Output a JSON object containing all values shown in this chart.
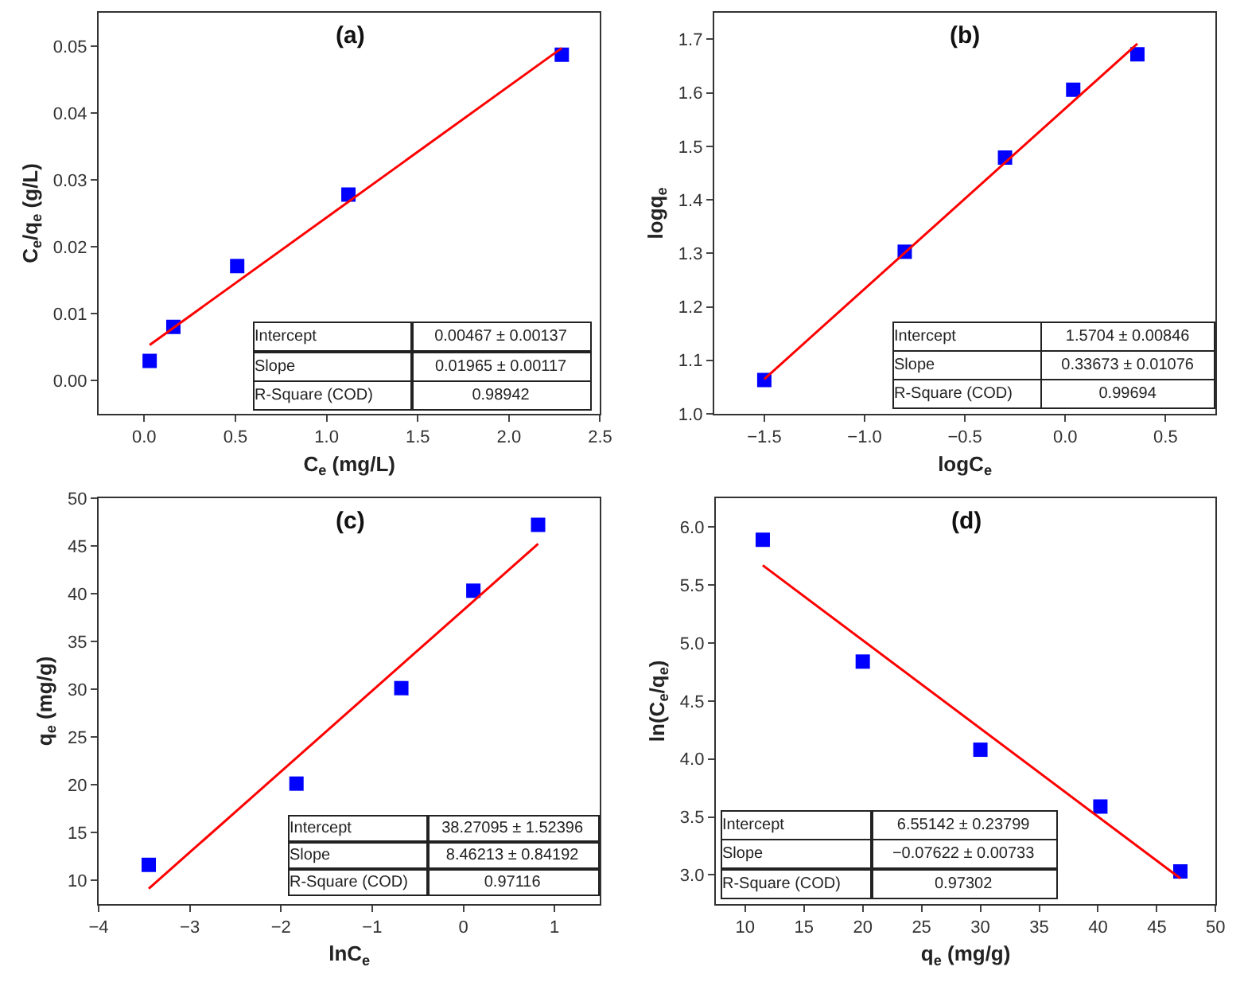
{
  "chart_data": [
    {
      "type": "scatter",
      "title": "(a)",
      "xlabel": "C$_{e}$ (mg/L)",
      "ylabel": "C$_{e}$/q$_{e}$ (g/L)",
      "marker": "square",
      "x": [
        0.03,
        0.16,
        0.51,
        1.12,
        2.29
      ],
      "series": [
        {
          "color": "#0000ff",
          "values": [
            0.0029,
            0.008,
            0.0171,
            0.0278,
            0.0487
          ]
        },
        {
          "type": "line",
          "marker": "none",
          "color": "#ff0000",
          "x": [
            0.03,
            2.29
          ],
          "values": [
            0.0053,
            0.0497
          ]
        }
      ],
      "xlim": [
        -0.25,
        2.5
      ],
      "xticks": [
        {
          "value": 0,
          "label": "0.0"
        },
        0.5,
        {
          "value": 1,
          "label": "1.0"
        },
        1.5,
        {
          "value": 2,
          "label": "2.0"
        },
        2.5
      ],
      "ylim": [
        -0.005,
        0.055
      ],
      "yticks": [
        {
          "value": 0,
          "label": "0.00"
        },
        0.01,
        0.02,
        0.03,
        0.04,
        0.05
      ],
      "annotations": [
        "Intercept",
        "0.00467 ± 0.00137",
        "Slope",
        "0.01965 ± 0.00117",
        "R-Square (COD)",
        "0.98942"
      ]
    },
    {
      "type": "scatter",
      "title": "(b)",
      "xlabel": "logC$_{e}$",
      "ylabel": "logq$_{e}$",
      "marker": "square",
      "x": [
        -1.5,
        -0.8,
        -0.3,
        0.04,
        0.36
      ],
      "series": [
        {
          "color": "#0000ff",
          "values": [
            1.063,
            1.303,
            1.479,
            1.606,
            1.672
          ]
        },
        {
          "type": "line",
          "marker": "none",
          "color": "#ff0000",
          "x": [
            -1.5,
            0.36
          ],
          "values": [
            1.065,
            1.692
          ]
        }
      ],
      "xlim": [
        -1.75,
        0.75
      ],
      "xticks": [
        {
          "value": -1.5,
          "label": "−1.5"
        },
        {
          "value": -1,
          "label": "−1.0"
        },
        {
          "value": -0.5,
          "label": "−0.5"
        },
        {
          "value": 0,
          "label": "0.0"
        },
        0.5
      ],
      "ylim": [
        1.0,
        1.75
      ],
      "yticks": [
        {
          "value": 1,
          "label": "1.0"
        },
        1.1,
        1.2,
        1.3,
        1.4,
        1.5,
        1.6,
        1.7
      ],
      "annotations": [
        "Intercept",
        "1.5704 ± 0.00846",
        "Slope",
        "0.33673 ± 0.01076",
        "R-Square (COD)",
        "0.99694"
      ]
    },
    {
      "type": "scatter",
      "title": "(c)",
      "xlabel": "lnC$_{e}$",
      "ylabel": "q$_{e}$ (mg/g)",
      "marker": "square",
      "x": [
        -3.45,
        -1.83,
        -0.68,
        0.11,
        0.82
      ],
      "series": [
        {
          "color": "#0000ff",
          "values": [
            11.6,
            20.1,
            30.1,
            40.3,
            47.2
          ]
        },
        {
          "type": "line",
          "marker": "none",
          "color": "#ff0000",
          "x": [
            -3.45,
            0.82
          ],
          "values": [
            9.1,
            45.2
          ]
        }
      ],
      "xlim": [
        -4,
        1.5
      ],
      "xticks": [
        {
          "value": -4,
          "label": "−4"
        },
        {
          "value": -3,
          "label": "−3"
        },
        {
          "value": -2,
          "label": "−2"
        },
        {
          "value": -1,
          "label": "−1"
        },
        0,
        1
      ],
      "ylim": [
        7.5,
        50
      ],
      "yticks": [
        10,
        15,
        20,
        25,
        30,
        35,
        40,
        45,
        50
      ],
      "annotations": [
        "Intercept",
        "38.27095 ± 1.52396",
        "Slope",
        "8.46213 ± 0.84192",
        "R-Square (COD)",
        "0.97116"
      ]
    },
    {
      "type": "scatter",
      "title": "(d)",
      "xlabel": "q$_{e}$ (mg/g)",
      "ylabel": "ln(C$_{e}$/q$_{e}$)",
      "marker": "square",
      "x": [
        11.5,
        20.0,
        30.0,
        40.2,
        47.0
      ],
      "series": [
        {
          "color": "#0000ff",
          "values": [
            5.89,
            4.84,
            4.08,
            3.59,
            3.03
          ]
        },
        {
          "type": "line",
          "marker": "none",
          "color": "#ff0000",
          "x": [
            11.5,
            47.0
          ],
          "values": [
            5.67,
            2.97
          ]
        }
      ],
      "xlim": [
        7.5,
        50
      ],
      "xticks": [
        10,
        15,
        20,
        25,
        30,
        35,
        40,
        45,
        50
      ],
      "ylim": [
        2.75,
        6.25
      ],
      "yticks": [
        {
          "value": 3,
          "label": "3.0"
        },
        3.5,
        {
          "value": 4,
          "label": "4.0"
        },
        4.5,
        {
          "value": 5,
          "label": "5.0"
        },
        5.5,
        {
          "value": 6,
          "label": "6.0"
        }
      ],
      "annotations": [
        "Intercept",
        "6.55142 ± 0.23799",
        "Slope",
        "−0.07622 ± 0.00733",
        "R-Square (COD)",
        "0.97302"
      ]
    }
  ]
}
